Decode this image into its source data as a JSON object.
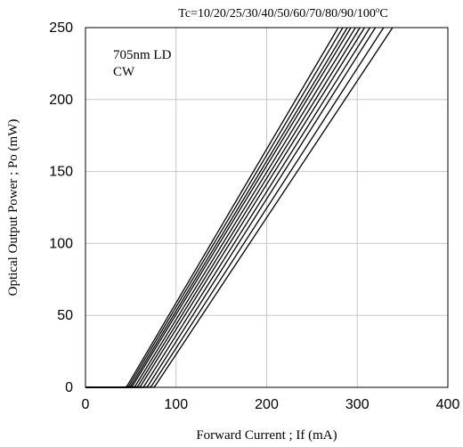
{
  "chart_data": {
    "type": "line",
    "title": "Tc=10/20/25/30/40/50/60/70/80/90/100",
    "title_superscript": "o",
    "title_unit": "C",
    "annotation_lines": [
      "705nm LD",
      "CW"
    ],
    "xlabel": "Forward Current ; If  (mA)",
    "ylabel": "Optical Output Power ; Po  (mW)",
    "xlim": [
      0,
      400
    ],
    "ylim": [
      0,
      250
    ],
    "xticks": [
      0,
      100,
      200,
      300,
      400
    ],
    "yticks": [
      0,
      50,
      100,
      150,
      200,
      250
    ],
    "grid": true,
    "series": [
      {
        "values": [
          [
            0,
            0
          ],
          [
            44,
            0
          ],
          [
            46,
            1
          ],
          [
            279,
            250
          ]
        ]
      },
      {
        "values": [
          [
            0,
            0
          ],
          [
            46,
            0
          ],
          [
            48,
            1
          ],
          [
            284,
            250
          ]
        ]
      },
      {
        "values": [
          [
            0,
            0
          ],
          [
            48,
            0
          ],
          [
            50,
            1
          ],
          [
            289,
            250
          ]
        ]
      },
      {
        "values": [
          [
            0,
            0
          ],
          [
            50,
            0
          ],
          [
            52,
            1
          ],
          [
            293,
            250
          ]
        ]
      },
      {
        "values": [
          [
            0,
            0
          ],
          [
            53,
            0
          ],
          [
            55,
            1
          ],
          [
            298,
            250
          ]
        ]
      },
      {
        "values": [
          [
            0,
            0
          ],
          [
            56,
            0
          ],
          [
            58,
            1
          ],
          [
            303,
            250
          ]
        ]
      },
      {
        "values": [
          [
            0,
            0
          ],
          [
            59,
            0
          ],
          [
            61,
            1
          ],
          [
            308,
            250
          ]
        ]
      },
      {
        "values": [
          [
            0,
            0
          ],
          [
            63,
            0
          ],
          [
            65,
            1
          ],
          [
            314,
            250
          ]
        ]
      },
      {
        "values": [
          [
            0,
            0
          ],
          [
            67,
            0
          ],
          [
            69,
            1
          ],
          [
            320,
            250
          ]
        ]
      },
      {
        "values": [
          [
            0,
            0
          ],
          [
            71,
            0
          ],
          [
            73,
            1
          ],
          [
            329,
            250
          ]
        ]
      },
      {
        "values": [
          [
            0,
            0
          ],
          [
            75,
            0
          ],
          [
            77,
            1
          ],
          [
            339,
            250
          ]
        ]
      }
    ]
  }
}
